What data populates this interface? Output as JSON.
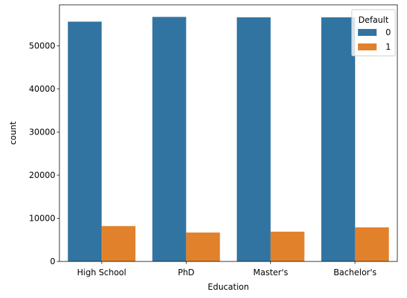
{
  "chart_data": {
    "type": "bar",
    "categories": [
      "High School",
      "PhD",
      "Master's",
      "Bachelor's"
    ],
    "series": [
      {
        "name": "0",
        "values": [
          55600,
          56700,
          56600,
          56600
        ],
        "color": "#3274a1"
      },
      {
        "name": "1",
        "values": [
          8200,
          6700,
          6900,
          7900
        ],
        "color": "#e1812c"
      }
    ],
    "xlabel": "Education",
    "ylabel": "count",
    "ylim": [
      0,
      59500
    ],
    "yticks": [
      0,
      10000,
      20000,
      30000,
      40000,
      50000
    ],
    "grid": false,
    "legend": {
      "title": "Default",
      "placement": "top-right"
    }
  }
}
